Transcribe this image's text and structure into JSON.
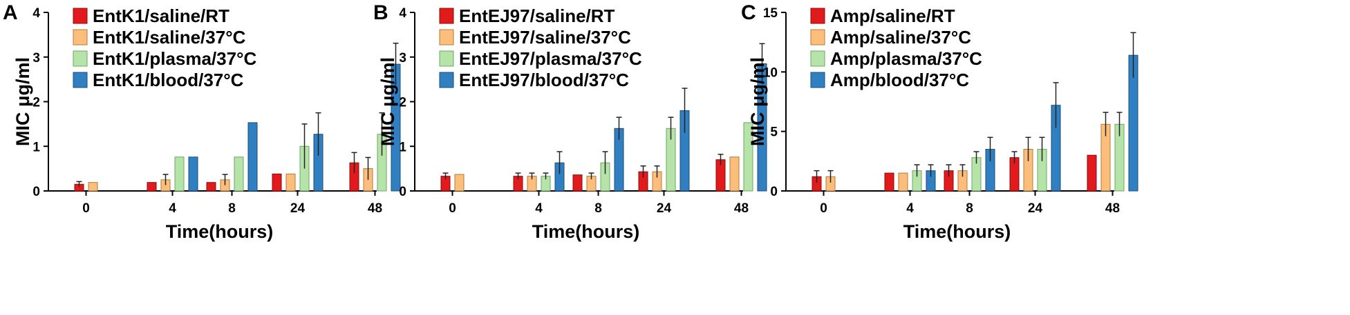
{
  "colors": {
    "series": [
      "#e31a1c",
      "#fdbe7c",
      "#b6e3a8",
      "#2f7fc1"
    ],
    "series_stroke": [
      "#8a0d0d",
      "#b07a3a",
      "#6fa36a",
      "#1c4e7a"
    ]
  },
  "chart_data": [
    {
      "type": "bar",
      "panel_label": "A",
      "categories": [
        "0",
        "4",
        "8",
        "24",
        "48"
      ],
      "xlabel": "Time(hours)",
      "ylabel": "MIC μg/ml",
      "ylim": [
        0,
        4
      ],
      "yticks": [
        "0",
        "1",
        "2",
        "3",
        "4"
      ],
      "legend_position": "top-left",
      "series": [
        {
          "name": "EntK1/saline/RT",
          "values": [
            0.15,
            0.19,
            0.19,
            0.38,
            0.63
          ],
          "errors": [
            0.06,
            0,
            0,
            0,
            0.23
          ]
        },
        {
          "name": "EntK1/saline/37°C",
          "values": [
            0.19,
            0.25,
            0.25,
            0.38,
            0.5
          ],
          "errors": [
            0,
            0.12,
            0.12,
            0,
            0.25
          ]
        },
        {
          "name": "EntK1/plasma/37°C",
          "values": [
            null,
            0.76,
            0.76,
            1.0,
            1.27
          ],
          "errors": [
            null,
            0,
            0,
            0.5,
            0.48
          ]
        },
        {
          "name": "EntK1/blood/37°C",
          "values": [
            null,
            0.76,
            1.53,
            1.27,
            2.84
          ],
          "errors": [
            null,
            0,
            0,
            0.48,
            0.47
          ]
        }
      ]
    },
    {
      "type": "bar",
      "panel_label": "B",
      "categories": [
        "0",
        "4",
        "8",
        "24",
        "48"
      ],
      "xlabel": "Time(hours)",
      "ylabel": "MIC μg/ml",
      "ylim": [
        0,
        4
      ],
      "yticks": [
        "0",
        "1",
        "2",
        "3",
        "4"
      ],
      "legend_position": "top-left",
      "series": [
        {
          "name": "EntEJ97/saline/RT",
          "values": [
            0.33,
            0.33,
            0.36,
            0.43,
            0.7
          ],
          "errors": [
            0.07,
            0.07,
            0,
            0.13,
            0.12
          ]
        },
        {
          "name": "EntEJ97/saline/37°C",
          "values": [
            0.37,
            0.33,
            0.33,
            0.43,
            0.76
          ],
          "errors": [
            0,
            0.07,
            0.07,
            0.13,
            0
          ]
        },
        {
          "name": "EntEJ97/plasma/37°C",
          "values": [
            null,
            0.33,
            0.63,
            1.4,
            1.53
          ],
          "errors": [
            null,
            0.07,
            0.25,
            0.25,
            0
          ]
        },
        {
          "name": "EntEJ97/blood/37°C",
          "values": [
            null,
            0.63,
            1.4,
            1.8,
            2.85
          ],
          "errors": [
            null,
            0.25,
            0.25,
            0.5,
            0.45
          ]
        }
      ]
    },
    {
      "type": "bar",
      "panel_label": "C",
      "categories": [
        "0",
        "4",
        "8",
        "24",
        "48"
      ],
      "xlabel": "Time(hours)",
      "ylabel": "MIC μg/ml",
      "ylim": [
        0,
        15
      ],
      "yticks": [
        "0",
        "5",
        "10",
        "15"
      ],
      "legend_position": "top-left",
      "series": [
        {
          "name": "Amp/saline/RT",
          "values": [
            1.2,
            1.5,
            1.7,
            2.8,
            3.0
          ],
          "errors": [
            0.5,
            0,
            0.5,
            0.5,
            0
          ]
        },
        {
          "name": "Amp/saline/37°C",
          "values": [
            1.2,
            1.5,
            1.7,
            3.5,
            5.6
          ],
          "errors": [
            0.5,
            0,
            0.5,
            1.0,
            1.0
          ]
        },
        {
          "name": "Amp/plasma/37°C",
          "values": [
            null,
            1.7,
            2.8,
            3.5,
            5.6
          ],
          "errors": [
            null,
            0.5,
            0.5,
            1.0,
            1.0
          ]
        },
        {
          "name": "Amp/blood/37°C",
          "values": [
            null,
            1.7,
            3.5,
            7.2,
            11.4
          ],
          "errors": [
            null,
            0.5,
            1.0,
            1.9,
            1.9
          ]
        }
      ]
    }
  ]
}
